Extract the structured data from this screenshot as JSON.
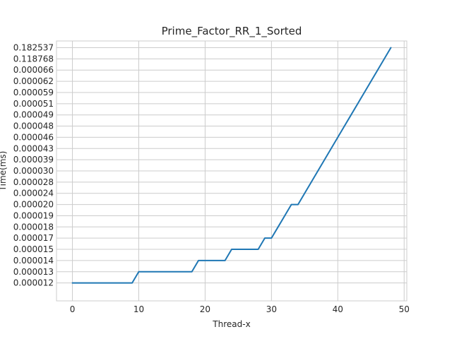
{
  "chart_data": {
    "type": "line",
    "title": "Prime_Factor_RR_1_Sorted",
    "xlabel": "Thread-x",
    "ylabel": "Time(ms)",
    "xlim": [
      -2.4,
      50.4
    ],
    "ylim": [
      -1.6,
      21.6
    ],
    "x_ticks": [
      0,
      10,
      20,
      30,
      40,
      50
    ],
    "y_ticks": [
      "0.000012",
      "0.000013",
      "0.000014",
      "0.000015",
      "0.000017",
      "0.000018",
      "0.000019",
      "0.000020",
      "0.000024",
      "0.000028",
      "0.000030",
      "0.000039",
      "0.000043",
      "0.000046",
      "0.000048",
      "0.000049",
      "0.000051",
      "0.000059",
      "0.000062",
      "0.000066",
      "0.118768",
      "0.182537"
    ],
    "grid": true,
    "legend": "none",
    "series": [
      {
        "color": "#1f77b4",
        "x": [
          0,
          1,
          2,
          3,
          4,
          5,
          6,
          7,
          8,
          9,
          10,
          11,
          12,
          13,
          14,
          15,
          16,
          17,
          18,
          19,
          20,
          21,
          22,
          23,
          24,
          25,
          26,
          27,
          28,
          29,
          30,
          31,
          32,
          33,
          34,
          35,
          36,
          37,
          38,
          39,
          40,
          41,
          42,
          43,
          44,
          45,
          46,
          47,
          48
        ],
        "y": [
          0,
          0,
          0,
          0,
          0,
          0,
          0,
          0,
          0,
          0,
          1,
          1,
          1,
          1,
          1,
          1,
          1,
          1,
          1,
          2,
          2,
          2,
          2,
          2,
          3,
          3,
          3,
          3,
          3,
          4,
          4,
          5,
          6,
          7,
          7,
          8,
          9,
          10,
          11,
          12,
          13,
          14,
          15,
          16,
          17,
          18,
          19,
          20,
          21
        ]
      }
    ]
  }
}
